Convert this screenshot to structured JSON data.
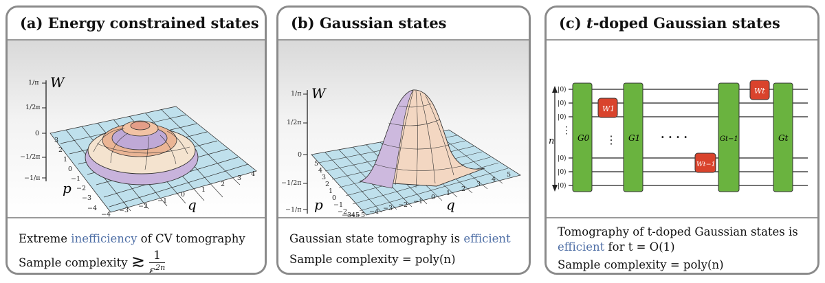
{
  "panels": {
    "a": {
      "title": "(a) Energy constrained states",
      "caption_line1_pre": "Extreme ",
      "caption_line1_highlight": "inefficiency",
      "caption_line1_post": " of CV tomography",
      "caption_line2_pre": "Sample complexity ",
      "caption_line2_symbol": "≳",
      "caption_frac_num": "1",
      "caption_frac_den": "ε",
      "caption_frac_den_exp": "2n",
      "axis_w": "W",
      "axis_p": "p",
      "axis_q": "q",
      "w_ticks": [
        "1/π",
        "1/2π",
        "0",
        "−1/2π",
        "−1/π"
      ],
      "p_ticks": [
        "3",
        "2",
        "1",
        "0",
        "−1",
        "−2",
        "−3",
        "−4"
      ],
      "q_ticks": [
        "−4",
        "−3",
        "−2",
        "−1",
        "0",
        "1",
        "2",
        "3",
        "4"
      ]
    },
    "b": {
      "title": "(b) Gaussian states",
      "caption_line1_pre": "Gaussian state tomography is ",
      "caption_line1_highlight": "efficient",
      "caption_line2_pre": "Sample complexity ",
      "caption_line2_math": "= poly(n)",
      "axis_w": "W",
      "axis_p": "p",
      "axis_q": "q",
      "w_ticks": [
        "1/π",
        "1/2π",
        "0",
        "−1/2π",
        "−1/π"
      ],
      "p_ticks": [
        "5",
        "4",
        "3",
        "2",
        "1",
        "0",
        "−1",
        "−2",
        "−3",
        "−4",
        "−5"
      ],
      "q_ticks": [
        "−5",
        "−4",
        "−3",
        "−2",
        "−1",
        "0",
        "1",
        "2",
        "3",
        "4",
        "5"
      ]
    },
    "c": {
      "title_pre": "(c) ",
      "title_var": "t",
      "title_post": "-doped Gaussian states",
      "caption_line1": "Tomography of t-doped Gaussian states is",
      "caption_line2_highlight": "efficient",
      "caption_line2_post": " for t = O(1)",
      "caption_line3_pre": "Sample complexity ",
      "caption_line3_math": "= poly(n)",
      "qubit_label": "|0⟩",
      "n_label": "n",
      "gates_g": [
        "G0",
        "G1",
        "Gt−1",
        "Gt"
      ],
      "gates_w": [
        "W1",
        "Wt−1",
        "Wt"
      ],
      "ellipsis": "· · · ·",
      "colors": {
        "green": "#6ab33f",
        "red": "#d9432c"
      }
    }
  }
}
